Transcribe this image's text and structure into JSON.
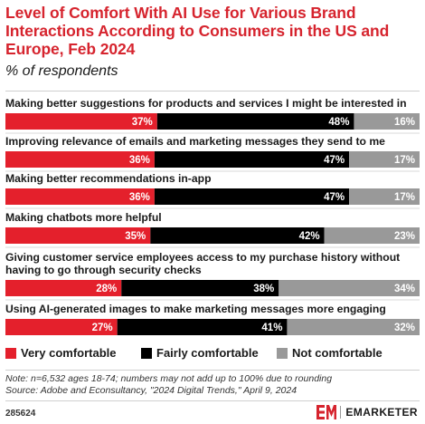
{
  "header": {
    "title": "Level of Comfort With AI Use for Various Brand Interactions According to Consumers in the US and Europe, Feb 2024",
    "subtitle": "% of respondents"
  },
  "chart_data": {
    "type": "bar",
    "orientation": "horizontal",
    "stacked": true,
    "title": "Level of Comfort With AI Use for Various Brand Interactions According to Consumers in the US and Europe, Feb 2024",
    "subtitle": "% of respondents",
    "categories": [
      "Making better suggestions for products and services I might be interested in",
      "Improving relevance of emails and marketing messages they send to me",
      "Making better recommendations in-app",
      "Making chatbots more helpful",
      "Giving customer service employees access to my purchase history without having to go through security checks",
      "Using AI-generated images to make marketing messages more engaging"
    ],
    "category_lines": [
      [
        "Making better suggestions for products and services I might be interested in"
      ],
      [
        "Improving relevance of emails and marketing messages they send to me"
      ],
      [
        "Making better recommendations in-app"
      ],
      [
        "Making chatbots more helpful"
      ],
      [
        "Giving customer service employees access to my purchase history without",
        "having to go through security checks"
      ],
      [
        "Using AI-generated images to make marketing messages more engaging"
      ]
    ],
    "series": [
      {
        "name": "Very comfortable",
        "values": [
          37,
          36,
          36,
          35,
          28,
          27
        ],
        "color": "#e4202c"
      },
      {
        "name": "Fairly comfortable",
        "values": [
          48,
          47,
          47,
          42,
          38,
          41
        ],
        "color": "#000000"
      },
      {
        "name": "Not comfortable",
        "values": [
          16,
          17,
          17,
          23,
          34,
          32
        ],
        "color": "#999999"
      }
    ],
    "value_suffix": "%",
    "legend_position": "bottom"
  },
  "footer": {
    "note": "Note: n=6,532 ages 18-74; numbers may not add up to 100% due to rounding",
    "source": "Source: Adobe and Econsultancy, \"2024 Digital Trends,\" April 9, 2024",
    "chart_id": "285624",
    "brand": "EMARKETER"
  }
}
